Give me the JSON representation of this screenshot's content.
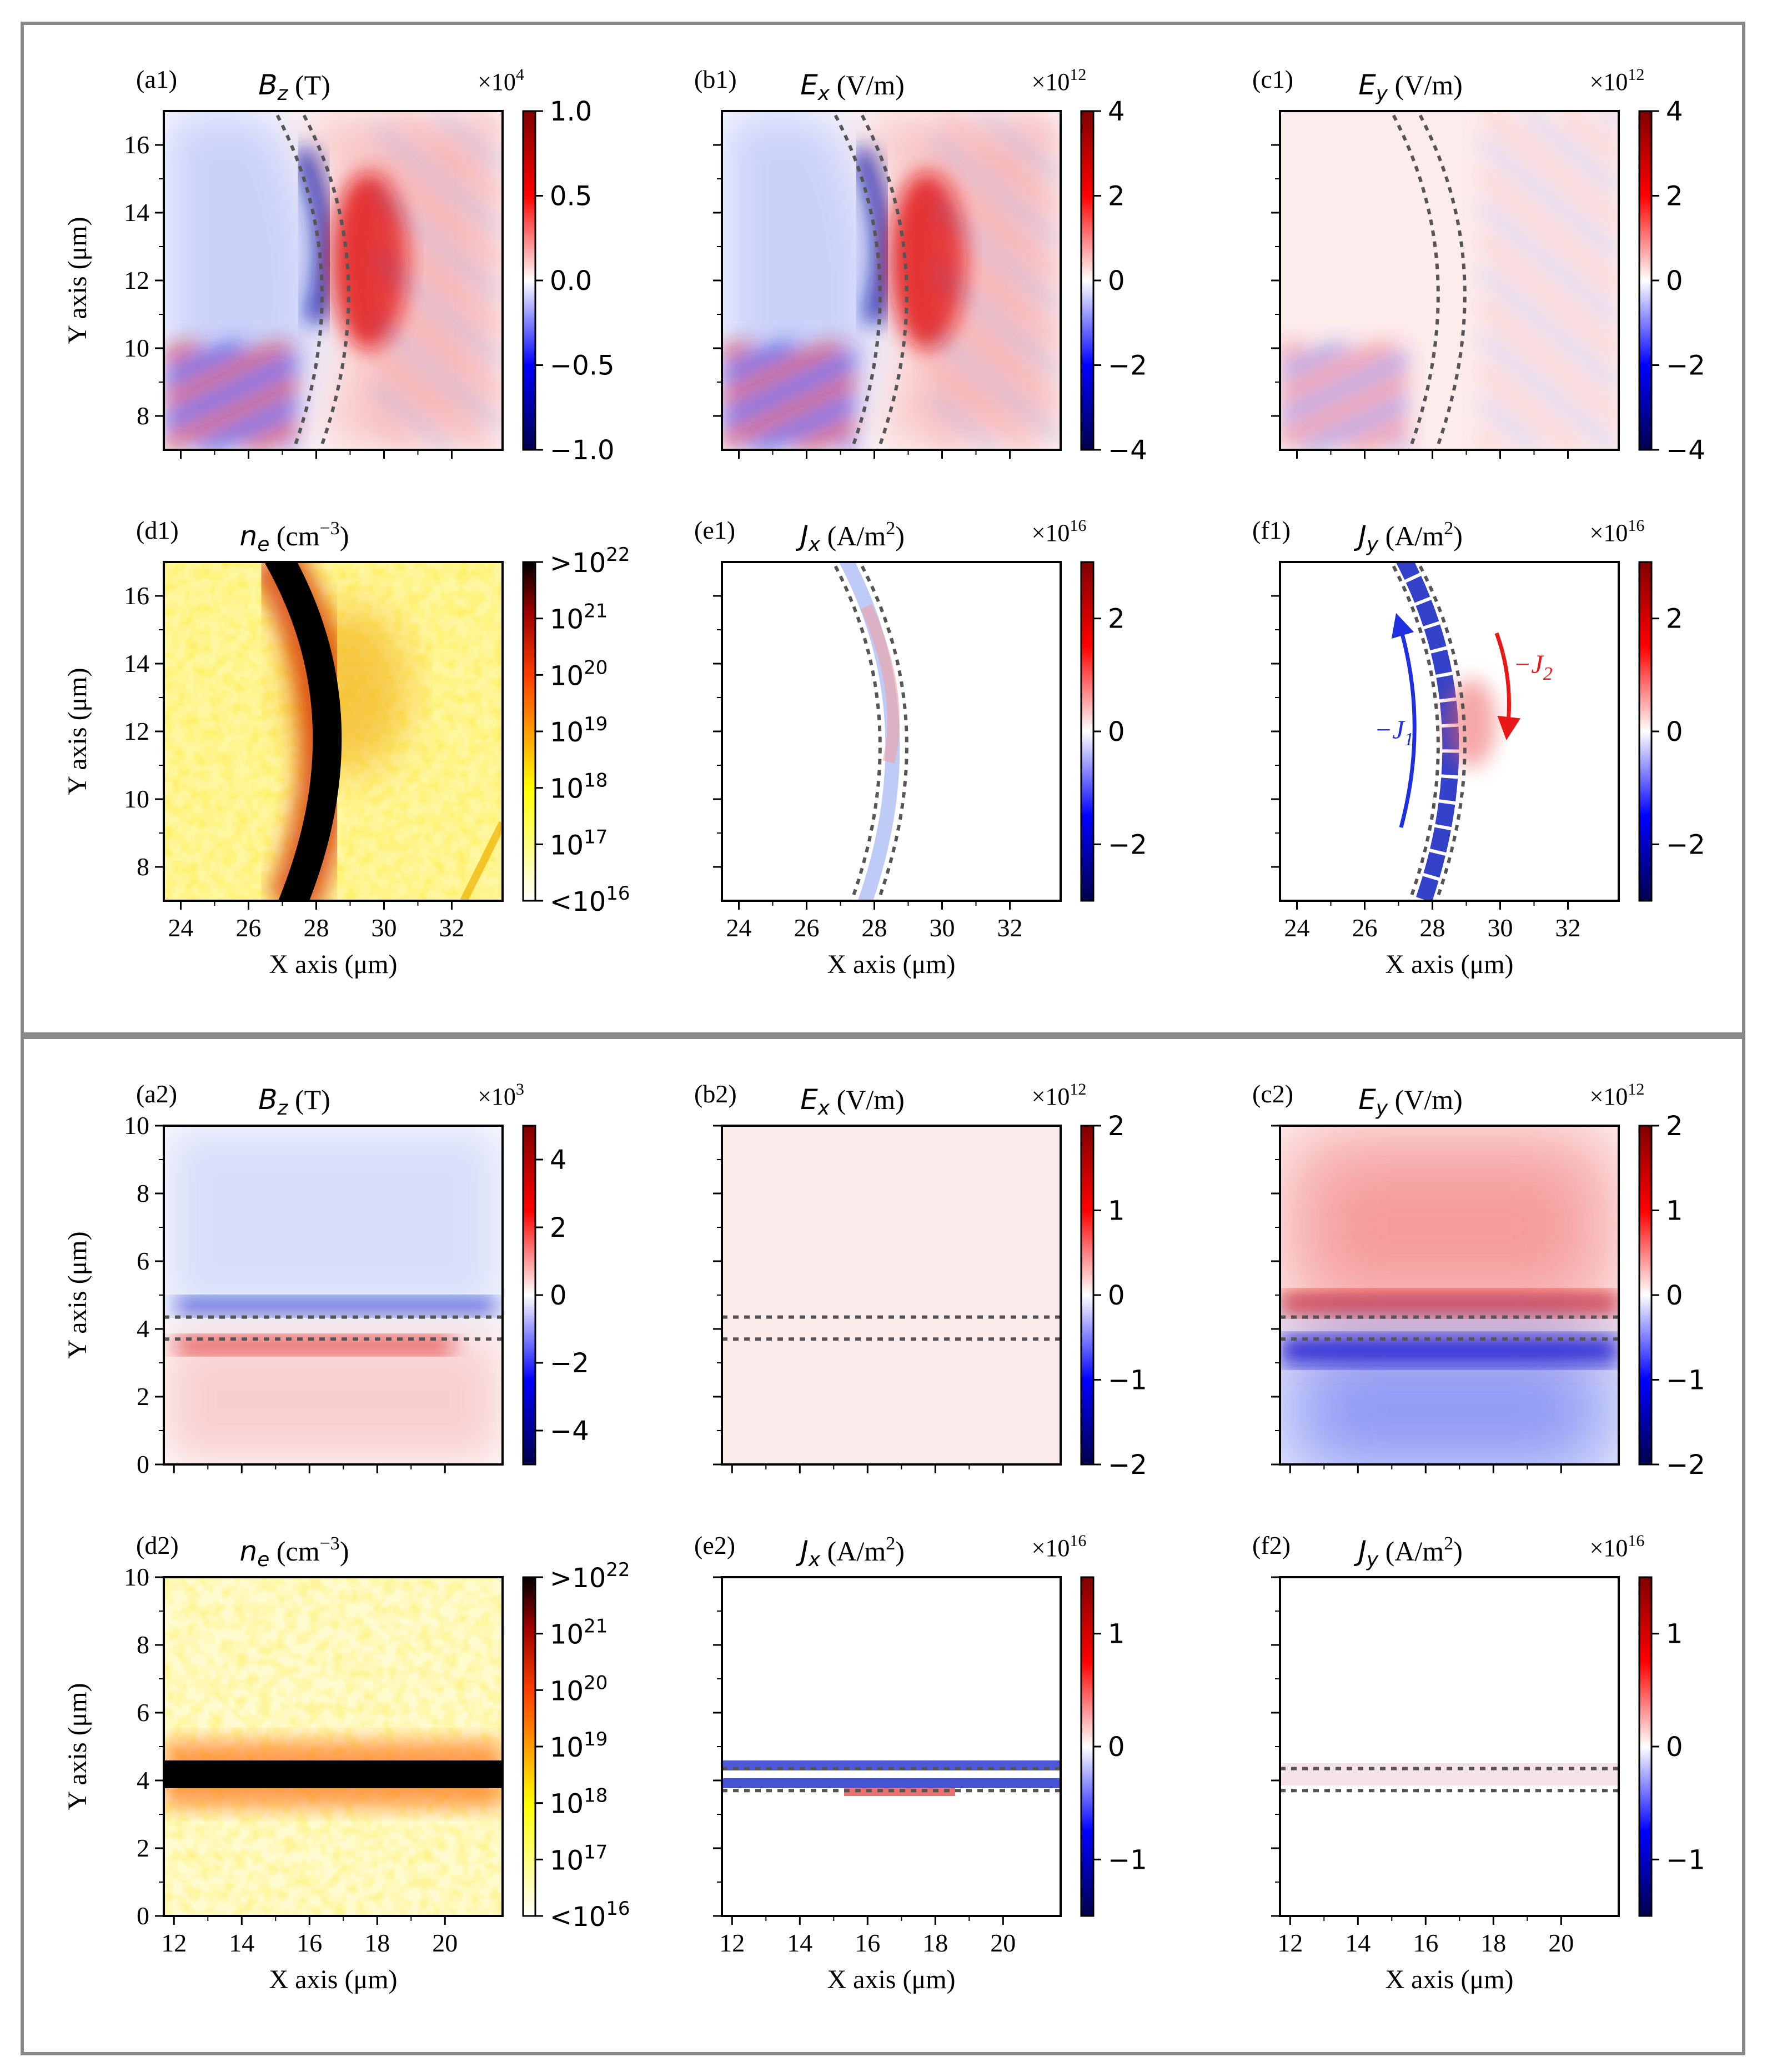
{
  "chart_data": [
    {
      "type": "heatmap",
      "id": "a1",
      "tag": "(a1)",
      "title_var": "B",
      "title_sub": "z",
      "title_unit": " (T)",
      "scale_base": "×10",
      "scale_exp": "4",
      "cbar_ticks": [
        "1.0",
        "0.5",
        "0.0",
        "−0.5",
        "−1.0"
      ],
      "cbar_values": [
        1.0,
        0.5,
        0.0,
        -0.5,
        -1.0
      ],
      "clim": [
        -1.0,
        1.0
      ],
      "cmap": "seismic",
      "xlim": [
        23.5,
        33.5
      ],
      "ylim": [
        7,
        17
      ],
      "xticks": [
        24,
        26,
        28,
        30,
        32
      ],
      "yticks": [
        8,
        10,
        12,
        14,
        16
      ],
      "xtick_labels": [],
      "ytick_labels": [
        "8",
        "10",
        "12",
        "14",
        "16"
      ],
      "xlabel": "",
      "ylabel": "Y axis (μm)"
    },
    {
      "type": "heatmap",
      "id": "b1",
      "tag": "(b1)",
      "title_var": "E",
      "title_sub": "x",
      "title_unit": " (V/m)",
      "scale_base": "×10",
      "scale_exp": "12",
      "cbar_ticks": [
        "4",
        "2",
        "0",
        "−2",
        "−4"
      ],
      "cbar_values": [
        4,
        2,
        0,
        -2,
        -4
      ],
      "clim": [
        -4,
        4
      ],
      "cmap": "seismic",
      "xlim": [
        23.5,
        33.5
      ],
      "ylim": [
        7,
        17
      ],
      "xticks": [
        24,
        26,
        28,
        30,
        32
      ],
      "yticks": [
        8,
        10,
        12,
        14,
        16
      ],
      "xtick_labels": [],
      "ytick_labels": [],
      "xlabel": "",
      "ylabel": ""
    },
    {
      "type": "heatmap",
      "id": "c1",
      "tag": "(c1)",
      "title_var": "E",
      "title_sub": "y",
      "title_unit": " (V/m)",
      "scale_base": "×10",
      "scale_exp": "12",
      "cbar_ticks": [
        "4",
        "2",
        "0",
        "−2",
        "−4"
      ],
      "cbar_values": [
        4,
        2,
        0,
        -2,
        -4
      ],
      "clim": [
        -4,
        4
      ],
      "cmap": "seismic",
      "xlim": [
        23.5,
        33.5
      ],
      "ylim": [
        7,
        17
      ],
      "xticks": [
        24,
        26,
        28,
        30,
        32
      ],
      "yticks": [
        8,
        10,
        12,
        14,
        16
      ],
      "xtick_labels": [],
      "ytick_labels": [],
      "xlabel": "",
      "ylabel": ""
    },
    {
      "type": "heatmap",
      "id": "d1",
      "tag": "(d1)",
      "title_var": "n",
      "title_sub": "e",
      "title_unit": " (cm",
      "title_sup": "−3",
      "title_close": ")",
      "cbar_ticks": [
        ">10",
        "10",
        "10",
        "10",
        "10",
        "10",
        "<10"
      ],
      "cbar_tick_exps": [
        "22",
        "21",
        "20",
        "19",
        "18",
        "17",
        "16"
      ],
      "cbar_values": [
        22,
        21,
        20,
        19,
        18,
        17,
        16
      ],
      "clim": [
        16,
        22
      ],
      "cmap": "hot_r",
      "xlim": [
        23.5,
        33.5
      ],
      "ylim": [
        7,
        17
      ],
      "xticks": [
        24,
        26,
        28,
        30,
        32
      ],
      "yticks": [
        8,
        10,
        12,
        14,
        16
      ],
      "xtick_labels": [
        "24",
        "26",
        "28",
        "30",
        "32"
      ],
      "ytick_labels": [
        "8",
        "10",
        "12",
        "14",
        "16"
      ],
      "xlabel": "X axis (μm)",
      "ylabel": "Y axis (μm)"
    },
    {
      "type": "heatmap",
      "id": "e1",
      "tag": "(e1)",
      "title_var": "J",
      "title_sub": "x",
      "title_unit": " (A/m",
      "title_sup": "2",
      "title_close": ")",
      "scale_base": "×10",
      "scale_exp": "16",
      "cbar_ticks": [
        "2",
        "0",
        "−2"
      ],
      "cbar_values": [
        2,
        0,
        -2
      ],
      "clim": [
        -3,
        3
      ],
      "cmap": "seismic",
      "xlim": [
        23.5,
        33.5
      ],
      "ylim": [
        7,
        17
      ],
      "xticks": [
        24,
        26,
        28,
        30,
        32
      ],
      "yticks": [
        8,
        10,
        12,
        14,
        16
      ],
      "xtick_labels": [
        "24",
        "26",
        "28",
        "30",
        "32"
      ],
      "ytick_labels": [],
      "xlabel": "X axis (μm)",
      "ylabel": ""
    },
    {
      "type": "heatmap",
      "id": "f1",
      "tag": "(f1)",
      "title_var": "J",
      "title_sub": "y",
      "title_unit": " (A/m",
      "title_sup": "2",
      "title_close": ")",
      "scale_base": "×10",
      "scale_exp": "16",
      "cbar_ticks": [
        "2",
        "0",
        "−2"
      ],
      "cbar_values": [
        2,
        0,
        -2
      ],
      "clim": [
        -3,
        3
      ],
      "cmap": "seismic",
      "xlim": [
        23.5,
        33.5
      ],
      "ylim": [
        7,
        17
      ],
      "xticks": [
        24,
        26,
        28,
        30,
        32
      ],
      "yticks": [
        8,
        10,
        12,
        14,
        16
      ],
      "xtick_labels": [
        "24",
        "26",
        "28",
        "30",
        "32"
      ],
      "ytick_labels": [],
      "xlabel": "X axis (μm)",
      "ylabel": "",
      "annotations": [
        {
          "text": "−J",
          "sub": "1",
          "color": "#1f2fe0"
        },
        {
          "text": "−J",
          "sub": "2",
          "color": "#e81818"
        }
      ]
    },
    {
      "type": "heatmap",
      "id": "a2",
      "tag": "(a2)",
      "title_var": "B",
      "title_sub": "z",
      "title_unit": " (T)",
      "scale_base": "×10",
      "scale_exp": "3",
      "cbar_ticks": [
        "4",
        "2",
        "0",
        "−2",
        "−4"
      ],
      "cbar_values": [
        4,
        2,
        0,
        -2,
        -4
      ],
      "clim": [
        -5,
        5
      ],
      "cmap": "seismic",
      "xlim": [
        11.7,
        21.7
      ],
      "ylim": [
        0,
        10
      ],
      "xticks": [
        12,
        14,
        16,
        18,
        20
      ],
      "yticks": [
        0,
        2,
        4,
        6,
        8,
        10
      ],
      "xtick_labels": [],
      "ytick_labels": [
        "0",
        "2",
        "4",
        "6",
        "8",
        "10"
      ],
      "xlabel": "",
      "ylabel": "Y axis (μm)"
    },
    {
      "type": "heatmap",
      "id": "b2",
      "tag": "(b2)",
      "title_var": "E",
      "title_sub": "x",
      "title_unit": " (V/m)",
      "scale_base": "×10",
      "scale_exp": "12",
      "cbar_ticks": [
        "2",
        "1",
        "0",
        "−1",
        "−2"
      ],
      "cbar_values": [
        2,
        1,
        0,
        -1,
        -2
      ],
      "clim": [
        -2,
        2
      ],
      "cmap": "seismic",
      "xlim": [
        11.7,
        21.7
      ],
      "ylim": [
        0,
        10
      ],
      "xticks": [
        12,
        14,
        16,
        18,
        20
      ],
      "yticks": [
        0,
        2,
        4,
        6,
        8,
        10
      ],
      "xtick_labels": [],
      "ytick_labels": [],
      "xlabel": "",
      "ylabel": ""
    },
    {
      "type": "heatmap",
      "id": "c2",
      "tag": "(c2)",
      "title_var": "E",
      "title_sub": "y",
      "title_unit": " (V/m)",
      "scale_base": "×10",
      "scale_exp": "12",
      "cbar_ticks": [
        "2",
        "1",
        "0",
        "−1",
        "−2"
      ],
      "cbar_values": [
        2,
        1,
        0,
        -1,
        -2
      ],
      "clim": [
        -2,
        2
      ],
      "cmap": "seismic",
      "xlim": [
        11.7,
        21.7
      ],
      "ylim": [
        0,
        10
      ],
      "xticks": [
        12,
        14,
        16,
        18,
        20
      ],
      "yticks": [
        0,
        2,
        4,
        6,
        8,
        10
      ],
      "xtick_labels": [],
      "ytick_labels": [],
      "xlabel": "",
      "ylabel": ""
    },
    {
      "type": "heatmap",
      "id": "d2",
      "tag": "(d2)",
      "title_var": "n",
      "title_sub": "e",
      "title_unit": " (cm",
      "title_sup": "−3",
      "title_close": ")",
      "cbar_ticks": [
        ">10",
        "10",
        "10",
        "10",
        "10",
        "10",
        "<10"
      ],
      "cbar_tick_exps": [
        "22",
        "21",
        "20",
        "19",
        "18",
        "17",
        "16"
      ],
      "cbar_values": [
        22,
        21,
        20,
        19,
        18,
        17,
        16
      ],
      "clim": [
        16,
        22
      ],
      "cmap": "hot_r",
      "xlim": [
        11.7,
        21.7
      ],
      "ylim": [
        0,
        10
      ],
      "xticks": [
        12,
        14,
        16,
        18,
        20
      ],
      "yticks": [
        0,
        2,
        4,
        6,
        8,
        10
      ],
      "xtick_labels": [
        "12",
        "14",
        "16",
        "18",
        "20"
      ],
      "ytick_labels": [
        "0",
        "2",
        "4",
        "6",
        "8",
        "10"
      ],
      "xlabel": "X axis (μm)",
      "ylabel": "Y axis (μm)"
    },
    {
      "type": "heatmap",
      "id": "e2",
      "tag": "(e2)",
      "title_var": "J",
      "title_sub": "x",
      "title_unit": " (A/m",
      "title_sup": "2",
      "title_close": ")",
      "scale_base": "×10",
      "scale_exp": "16",
      "cbar_ticks": [
        "1",
        "0",
        "−1"
      ],
      "cbar_values": [
        1,
        0,
        -1
      ],
      "clim": [
        -1.5,
        1.5
      ],
      "cmap": "seismic",
      "xlim": [
        11.7,
        21.7
      ],
      "ylim": [
        0,
        10
      ],
      "xticks": [
        12,
        14,
        16,
        18,
        20
      ],
      "yticks": [
        0,
        2,
        4,
        6,
        8,
        10
      ],
      "xtick_labels": [
        "12",
        "14",
        "16",
        "18",
        "20"
      ],
      "ytick_labels": [],
      "xlabel": "X axis (μm)",
      "ylabel": ""
    },
    {
      "type": "heatmap",
      "id": "f2",
      "tag": "(f2)",
      "title_var": "J",
      "title_sub": "y",
      "title_unit": " (A/m",
      "title_sup": "2",
      "title_close": ")",
      "scale_base": "×10",
      "scale_exp": "16",
      "cbar_ticks": [
        "1",
        "0",
        "−1"
      ],
      "cbar_values": [
        1,
        0,
        -1
      ],
      "clim": [
        -1.5,
        1.5
      ],
      "cmap": "seismic",
      "xlim": [
        11.7,
        21.7
      ],
      "ylim": [
        0,
        10
      ],
      "xticks": [
        12,
        14,
        16,
        18,
        20
      ],
      "yticks": [
        0,
        2,
        4,
        6,
        8,
        10
      ],
      "xtick_labels": [
        "12",
        "14",
        "16",
        "18",
        "20"
      ],
      "ytick_labels": [],
      "xlabel": "X axis (μm)",
      "ylabel": ""
    }
  ],
  "colors": {
    "positive": "#e01010",
    "negative": "#1a1ad8",
    "frame": "#888888",
    "boundary": "#555555"
  }
}
